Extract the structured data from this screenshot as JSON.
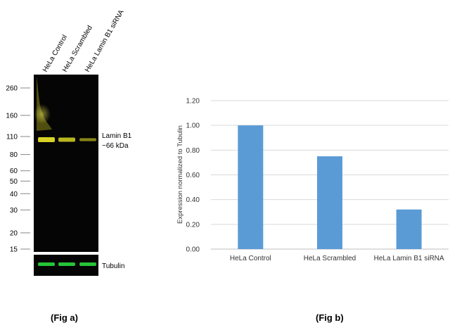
{
  "blot": {
    "lanes": [
      "HeLa Control",
      "HeLa Scrambled",
      "HeLa Lamin B1 siRNA"
    ],
    "markers": [
      "260",
      "160",
      "110",
      "80",
      "60",
      "50",
      "40",
      "30",
      "20",
      "15"
    ],
    "marker_kda": [
      260,
      160,
      110,
      80,
      60,
      50,
      40,
      30,
      20,
      15
    ],
    "band_label_line1": "Lamin B1",
    "band_label_line2": "~66 kDa",
    "loading_control_label": "Tubulin",
    "band_intensity": [
      1.0,
      0.75,
      0.32
    ],
    "colors": {
      "target_band": "#d6d226",
      "tubulin_band": "#25c437",
      "background": "#050505"
    }
  },
  "chart_data": {
    "type": "bar",
    "categories": [
      "HeLa Control",
      "HeLa Scrambled",
      "HeLa Lamin B1 siRNA"
    ],
    "values": [
      1.0,
      0.75,
      0.32
    ],
    "title": "",
    "xlabel": "",
    "ylabel": "Expression normalized to Tubulin",
    "ylim": [
      0,
      1.2
    ],
    "yticks": [
      "0.00",
      "0.20",
      "0.40",
      "0.60",
      "0.80",
      "1.00",
      "1.20"
    ],
    "grid": true,
    "bar_color": "#5b9bd5"
  },
  "captions": {
    "fig_a": "(Fig a)",
    "fig_b": "(Fig b)"
  }
}
